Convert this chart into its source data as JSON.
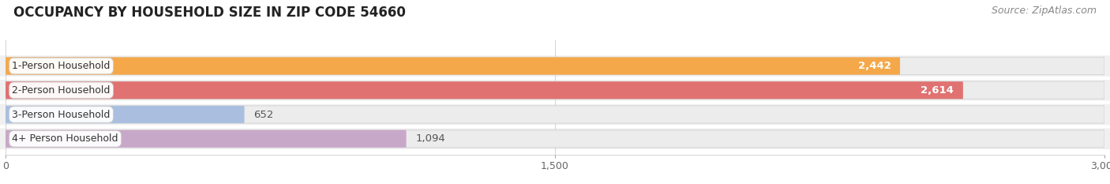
{
  "title": "OCCUPANCY BY HOUSEHOLD SIZE IN ZIP CODE 54660",
  "source": "Source: ZipAtlas.com",
  "categories": [
    "1-Person Household",
    "2-Person Household",
    "3-Person Household",
    "4+ Person Household"
  ],
  "values": [
    2442,
    2614,
    652,
    1094
  ],
  "bar_colors": [
    "#F5A84A",
    "#E07272",
    "#AABFDF",
    "#C8A8C8"
  ],
  "bar_bg_color": "#ececec",
  "bar_bg_edge_color": "#d8d8d8",
  "row_bg_colors": [
    "#fafafa",
    "#fafafa",
    "#fafafa",
    "#fafafa"
  ],
  "xlim": [
    0,
    3000
  ],
  "xticks": [
    0,
    1500,
    3000
  ],
  "background_color": "#ffffff",
  "title_fontsize": 12,
  "source_fontsize": 9,
  "label_fontsize": 9,
  "value_fontsize": 9.5
}
